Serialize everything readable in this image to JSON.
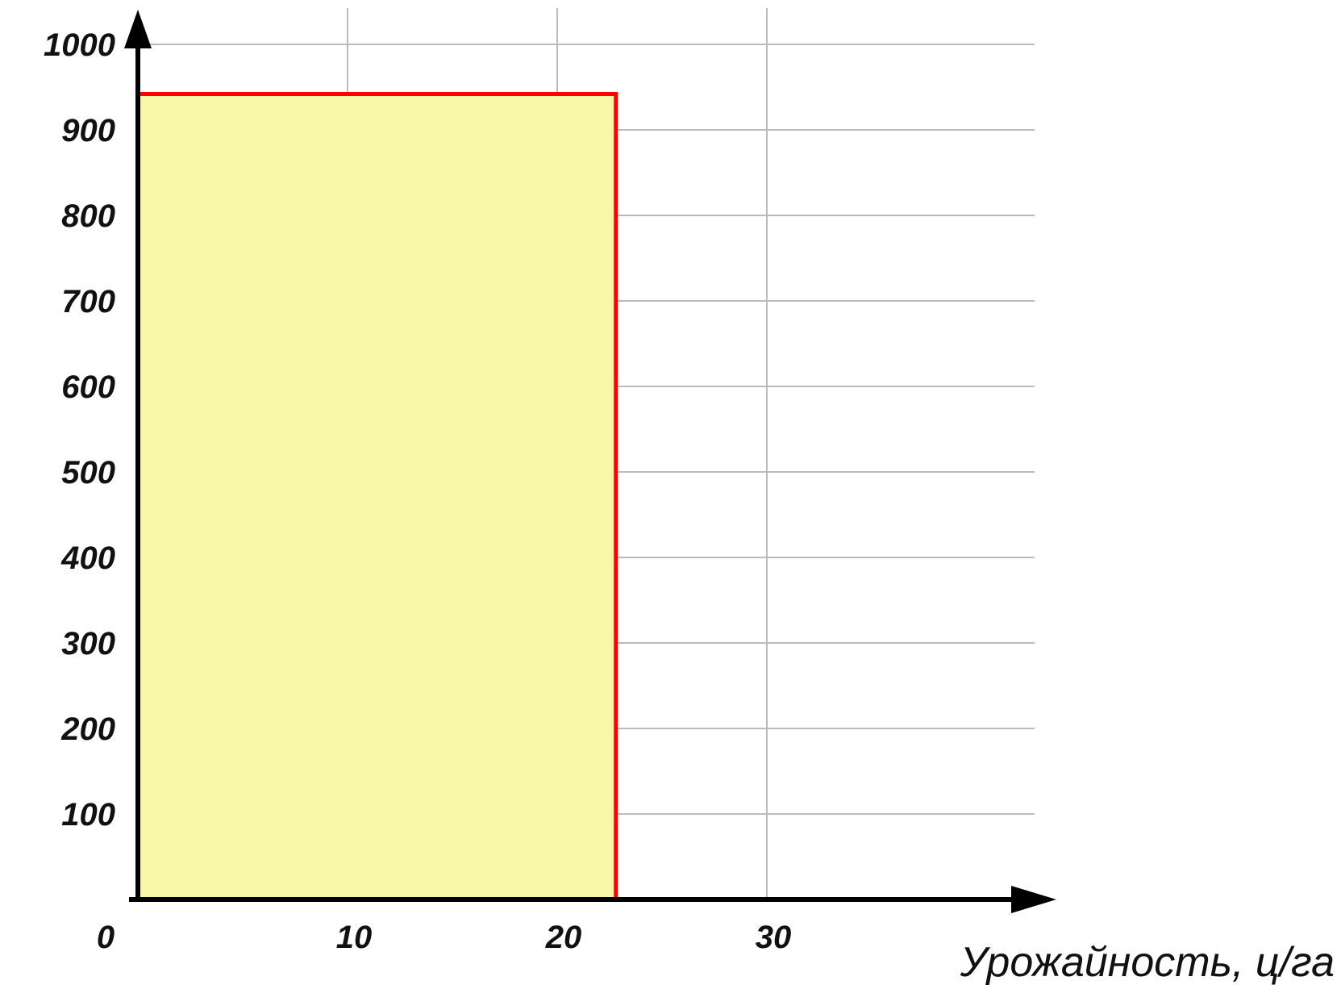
{
  "chart_data": {
    "type": "area",
    "title": "",
    "xlabel": "Урожайность, ц/га",
    "ylabel": "",
    "xlim": [
      0,
      43
    ],
    "ylim": [
      0,
      1000
    ],
    "x_ticks": [
      10,
      20,
      30
    ],
    "x_tick_labels": [
      "10",
      "20",
      "30"
    ],
    "y_ticks": [
      100,
      200,
      300,
      400,
      500,
      600,
      700,
      800,
      900,
      1000
    ],
    "y_tick_labels": [
      "100",
      "200",
      "300",
      "400",
      "500",
      "600",
      "700",
      "800",
      "900",
      "1000"
    ],
    "origin_label": "0",
    "grid": true,
    "series": [
      {
        "x": [
          0,
          0,
          22.8,
          22.8
        ],
        "y": [
          0,
          942,
          942,
          0
        ]
      }
    ],
    "colors": {
      "fill": "#f7f7a6",
      "edge": "#ff0000",
      "grid": "#bbbbbb",
      "axis": "#000000"
    }
  }
}
